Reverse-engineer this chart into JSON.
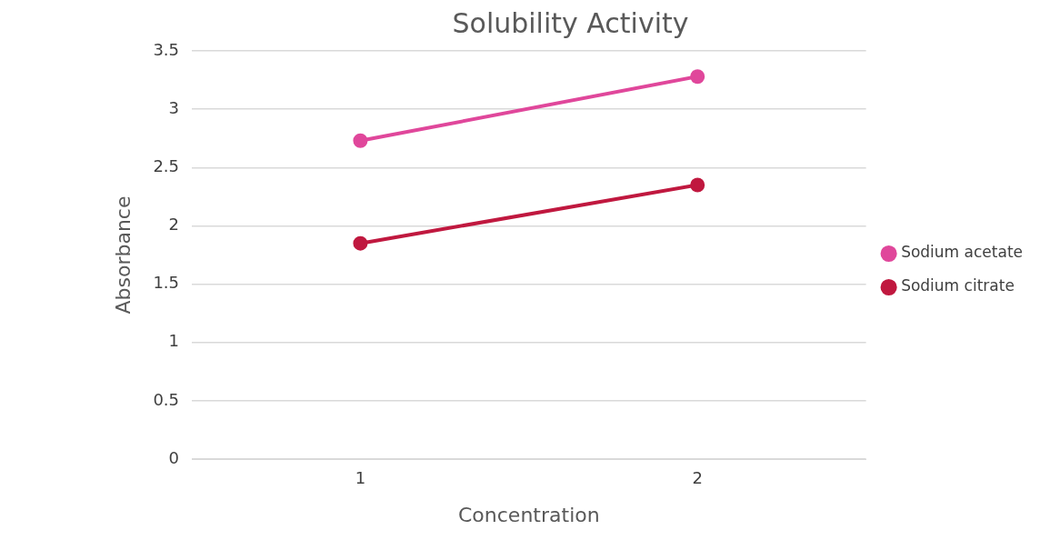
{
  "chart_data": {
    "type": "line",
    "title": "Solubility Activity",
    "xlabel": "Concentration",
    "ylabel": "Absorbance",
    "categories": [
      "1",
      "2"
    ],
    "series": [
      {
        "name": "Sodium acetate",
        "color": "#e0479b",
        "values": [
          2.73,
          3.28
        ]
      },
      {
        "name": "Sodium citrate",
        "color": "#c0183f",
        "values": [
          1.85,
          2.35
        ]
      }
    ],
    "ylim": [
      0,
      3.5
    ],
    "yticks": [
      0,
      0.5,
      1,
      1.5,
      2,
      2.5,
      3,
      3.5
    ],
    "grid": "y",
    "legend": "right",
    "marker": "circle",
    "line_style": "solid"
  }
}
